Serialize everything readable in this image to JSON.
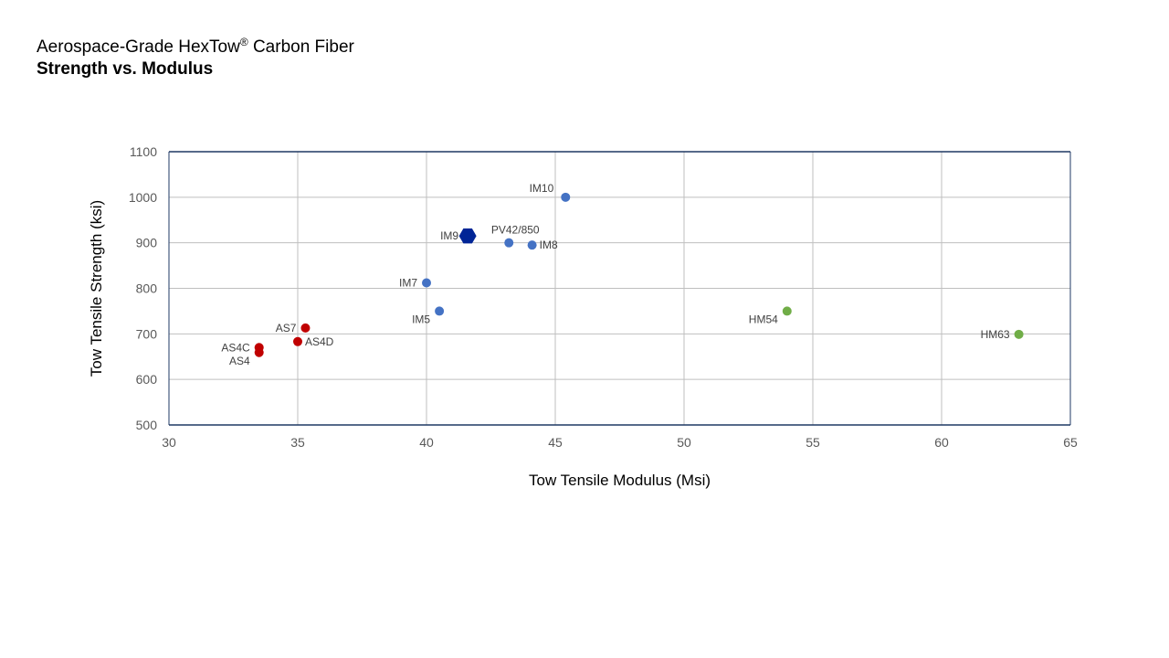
{
  "title": {
    "line1_prefix": "Aerospace-Grade HexTow",
    "line1_sup": "®",
    "line1_suffix": " Carbon Fiber",
    "line2": "Strength vs. Modulus"
  },
  "chart_data": {
    "type": "scatter",
    "xlabel": "Tow Tensile Modulus (Msi)",
    "ylabel": "Tow Tensile Strength (ksi)",
    "xlim": [
      30,
      65
    ],
    "ylim": [
      500,
      1100
    ],
    "xticks": [
      30,
      35,
      40,
      45,
      50,
      55,
      60,
      65
    ],
    "yticks": [
      500,
      600,
      700,
      800,
      900,
      1000,
      1100
    ],
    "grid": true,
    "legend": "none",
    "colors": {
      "standard": "#c00000",
      "intermediate": "#4472c4",
      "highlight": "#002596",
      "high_modulus": "#70ad47",
      "grid": "#bfbfbf",
      "frame": "#1f3864"
    },
    "series": [
      {
        "group": "standard",
        "points": [
          {
            "label": "AS4",
            "x": 33.5,
            "y": 659,
            "label_pos": "left-below"
          },
          {
            "label": "AS4C",
            "x": 33.5,
            "y": 670,
            "label_pos": "left"
          },
          {
            "label": "AS4D",
            "x": 35.0,
            "y": 683,
            "label_pos": "right"
          },
          {
            "label": "AS7",
            "x": 35.3,
            "y": 713,
            "label_pos": "left"
          }
        ]
      },
      {
        "group": "intermediate",
        "points": [
          {
            "label": "IM5",
            "x": 40.5,
            "y": 750,
            "label_pos": "left-below"
          },
          {
            "label": "IM7",
            "x": 40.0,
            "y": 812,
            "label_pos": "left"
          },
          {
            "label": "PV42/850",
            "x": 43.2,
            "y": 900,
            "label_pos": "above"
          },
          {
            "label": "IM8",
            "x": 44.1,
            "y": 895,
            "label_pos": "right"
          },
          {
            "label": "IM10",
            "x": 45.4,
            "y": 1000,
            "label_pos": "left-above"
          }
        ]
      },
      {
        "group": "highlight",
        "marker": "hexagon",
        "points": [
          {
            "label": "IM9",
            "x": 41.6,
            "y": 915,
            "label_pos": "left"
          }
        ]
      },
      {
        "group": "high_modulus",
        "points": [
          {
            "label": "HM54",
            "x": 54.0,
            "y": 750,
            "label_pos": "left-below"
          },
          {
            "label": "HM63",
            "x": 63.0,
            "y": 699,
            "label_pos": "left"
          }
        ]
      }
    ]
  }
}
